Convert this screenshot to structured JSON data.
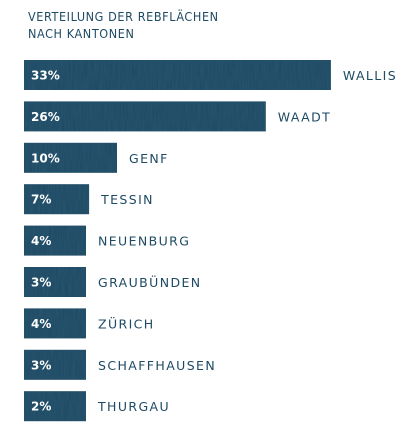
{
  "chart_data": {
    "type": "bar",
    "orientation": "horizontal",
    "title_lines": [
      "VERTEILUNG DER REBFLÄCHEN",
      "NACH KANTONEN"
    ],
    "categories": [
      "WALLIS",
      "WAADT",
      "GENF",
      "TESSIN",
      "NEUENBURG",
      "GRAUBÜNDEN",
      "ZÜRICH",
      "SCHAFFHAUSEN",
      "THURGAU"
    ],
    "values": [
      33,
      26,
      10,
      7,
      4,
      3,
      4,
      3,
      2
    ],
    "value_labels": [
      "33%",
      "26%",
      "10%",
      "7%",
      "4%",
      "3%",
      "4%",
      "3%",
      "2%"
    ],
    "unit": "%",
    "bar_color": "#1e4a64",
    "label_color": "#1e4a64",
    "grid": false,
    "legend": "none"
  }
}
